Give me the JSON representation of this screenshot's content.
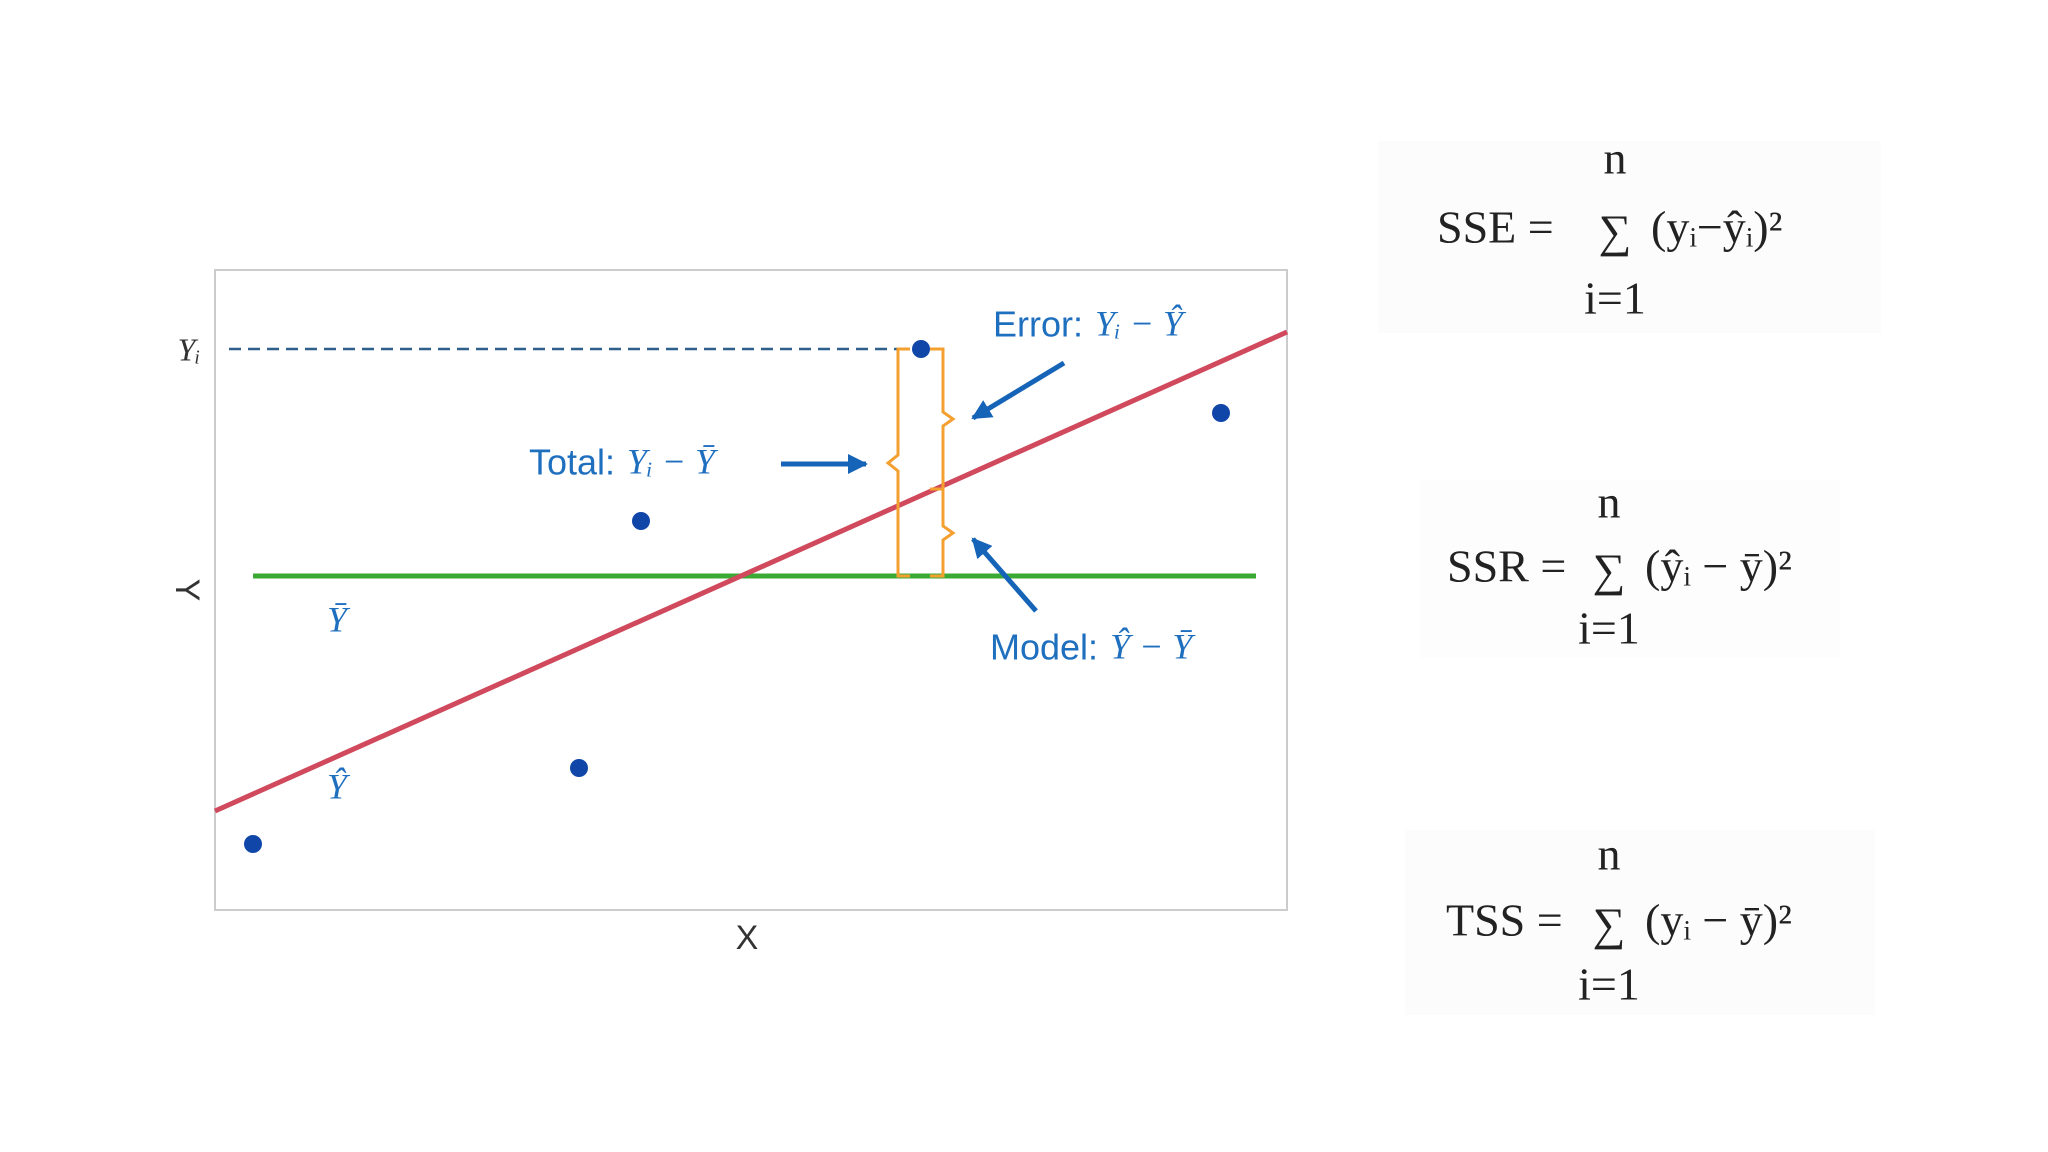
{
  "diagram": {
    "axis_labels": {
      "y_value": "Yᵢ",
      "y": "Y",
      "x": "X"
    },
    "line_labels": {
      "mean": "Ȳ",
      "fit": "Ŷ"
    },
    "annotations": {
      "error": {
        "label": "Error:",
        "expr": "Yᵢ − Ŷ"
      },
      "total": {
        "label": "Total:",
        "expr": "Yᵢ − Ȳ"
      },
      "model": {
        "label": "Model:",
        "expr": "Ŷ − Ȳ"
      }
    },
    "formulas": [
      {
        "lhs": "SSE =",
        "sum": "∑",
        "upper": "n",
        "lower": "i=1",
        "term": "(yᵢ−ŷᵢ)²"
      },
      {
        "lhs": "SSR =",
        "sum": "∑",
        "upper": "n",
        "lower": "i=1",
        "term": "(ŷᵢ − ȳ)²"
      },
      {
        "lhs": "TSS =",
        "sum": "∑",
        "upper": "n",
        "lower": "i=1",
        "term": "(yᵢ − ȳ)²"
      }
    ]
  }
}
